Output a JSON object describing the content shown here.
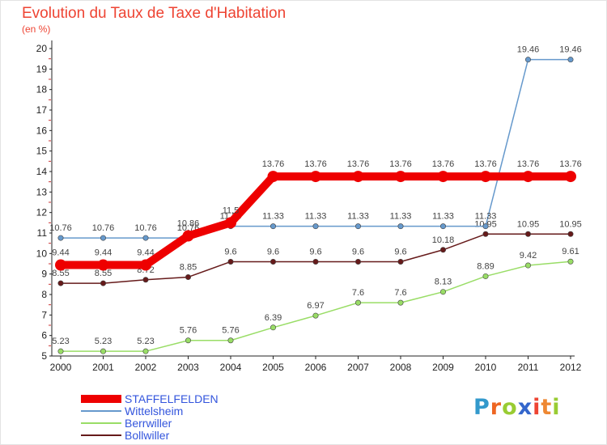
{
  "chart_data": {
    "type": "line",
    "title": "Evolution du Taux de Taxe d'Habitation",
    "subtitle": "(en %)",
    "x": [
      "2000",
      "2001",
      "2002",
      "2003",
      "2004",
      "2005",
      "2006",
      "2007",
      "2008",
      "2009",
      "2010",
      "2011",
      "2012"
    ],
    "ylim": [
      5,
      20
    ],
    "yticks": [
      5,
      6,
      7,
      8,
      9,
      10,
      11,
      12,
      13,
      14,
      15,
      16,
      17,
      18,
      19,
      20
    ],
    "grid": false,
    "legend_position": "bottom-left",
    "series": [
      {
        "name": "Bollwiller",
        "color": "#661a1a",
        "values": [
          8.55,
          8.55,
          8.72,
          8.85,
          9.6,
          9.6,
          9.6,
          9.6,
          9.6,
          10.18,
          10.95,
          10.95,
          10.95
        ],
        "labels": [
          "8.55",
          "8.55",
          "8.72",
          "8.85",
          "9.6",
          "9.6",
          "9.6",
          "9.6",
          "9.6",
          "10.18",
          "10.95",
          "10.95",
          "10.95"
        ]
      },
      {
        "name": "Berrwiller",
        "color": "#99dd66",
        "values": [
          5.23,
          5.23,
          5.23,
          5.76,
          5.76,
          6.39,
          6.97,
          7.6,
          7.6,
          8.13,
          8.89,
          9.42,
          9.61
        ],
        "labels": [
          "5.23",
          "5.23",
          "5.23",
          "5.76",
          "5.76",
          "6.39",
          "6.97",
          "7.6",
          "7.6",
          "8.13",
          "8.89",
          "9.42",
          "9.61"
        ]
      },
      {
        "name": "Wittelsheim",
        "color": "#6699cc",
        "values": [
          10.76,
          10.76,
          10.76,
          10.76,
          11.33,
          11.33,
          11.33,
          11.33,
          11.33,
          11.33,
          11.33,
          19.46,
          19.46
        ],
        "labels": [
          "10.76",
          "10.76",
          "10.76",
          "10.76",
          "11.33",
          "11.33",
          "11.33",
          "11.33",
          "11.33",
          "11.33",
          "11.33",
          "19.46",
          "19.46"
        ]
      },
      {
        "name": "STAFFELFELDEN",
        "color": "#ee0000",
        "values": [
          9.44,
          9.44,
          9.44,
          10.86,
          11.5,
          13.76,
          13.76,
          13.76,
          13.76,
          13.76,
          13.76,
          13.76,
          13.76
        ],
        "labels": [
          "9.44",
          "9.44",
          "9.44",
          "10.86",
          "11.5",
          "13.76",
          "13.76",
          "13.76",
          "13.76",
          "13.76",
          "13.76",
          "13.76",
          "13.76"
        ]
      }
    ],
    "legend": [
      {
        "name": "STAFFELFELDEN",
        "color": "#ee0000",
        "thick": true
      },
      {
        "name": "Wittelsheim",
        "color": "#6699cc",
        "thick": false
      },
      {
        "name": "Berrwiller",
        "color": "#99dd66",
        "thick": false
      },
      {
        "name": "Bollwiller",
        "color": "#661a1a",
        "thick": false
      }
    ]
  },
  "logo": {
    "letters": [
      "P",
      "r",
      "o",
      "x",
      "i",
      "t",
      "i"
    ],
    "colors": [
      "#3399cc",
      "#ee6622",
      "#99cc33",
      "#3366cc",
      "#ee4433",
      "#ee8833",
      "#99cc33"
    ]
  }
}
